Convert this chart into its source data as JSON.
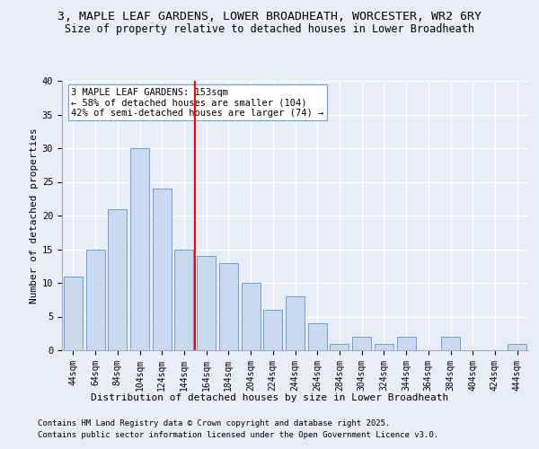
{
  "title1": "3, MAPLE LEAF GARDENS, LOWER BROADHEATH, WORCESTER, WR2 6RY",
  "title2": "Size of property relative to detached houses in Lower Broadheath",
  "xlabel": "Distribution of detached houses by size in Lower Broadheath",
  "ylabel": "Number of detached properties",
  "categories": [
    "44sqm",
    "64sqm",
    "84sqm",
    "104sqm",
    "124sqm",
    "144sqm",
    "164sqm",
    "184sqm",
    "204sqm",
    "224sqm",
    "244sqm",
    "264sqm",
    "284sqm",
    "304sqm",
    "324sqm",
    "344sqm",
    "364sqm",
    "384sqm",
    "404sqm",
    "424sqm",
    "444sqm"
  ],
  "values": [
    11,
    15,
    21,
    30,
    24,
    15,
    14,
    13,
    10,
    6,
    8,
    4,
    1,
    2,
    1,
    2,
    0,
    2,
    0,
    0,
    1
  ],
  "bar_color": "#c9d9f0",
  "bar_edge_color": "#6a9fd8",
  "vline_x": 5.5,
  "vline_color": "red",
  "annotation_text": "3 MAPLE LEAF GARDENS: 153sqm\n← 58% of detached houses are smaller (104)\n42% of semi-detached houses are larger (74) →",
  "annotation_box_color": "white",
  "annotation_box_edge": "#6a9fd8",
  "ylim": [
    0,
    40
  ],
  "yticks": [
    0,
    5,
    10,
    15,
    20,
    25,
    30,
    35,
    40
  ],
  "footer1": "Contains HM Land Registry data © Crown copyright and database right 2025.",
  "footer2": "Contains public sector information licensed under the Open Government Licence v3.0.",
  "bg_color": "#e8eef8",
  "plot_bg_color": "#e8eef8",
  "grid_color": "white",
  "title_fontsize": 9.5,
  "subtitle_fontsize": 8.5,
  "annot_fontsize": 7.5,
  "tick_fontsize": 7,
  "axis_label_fontsize": 8,
  "footer_fontsize": 6.5
}
